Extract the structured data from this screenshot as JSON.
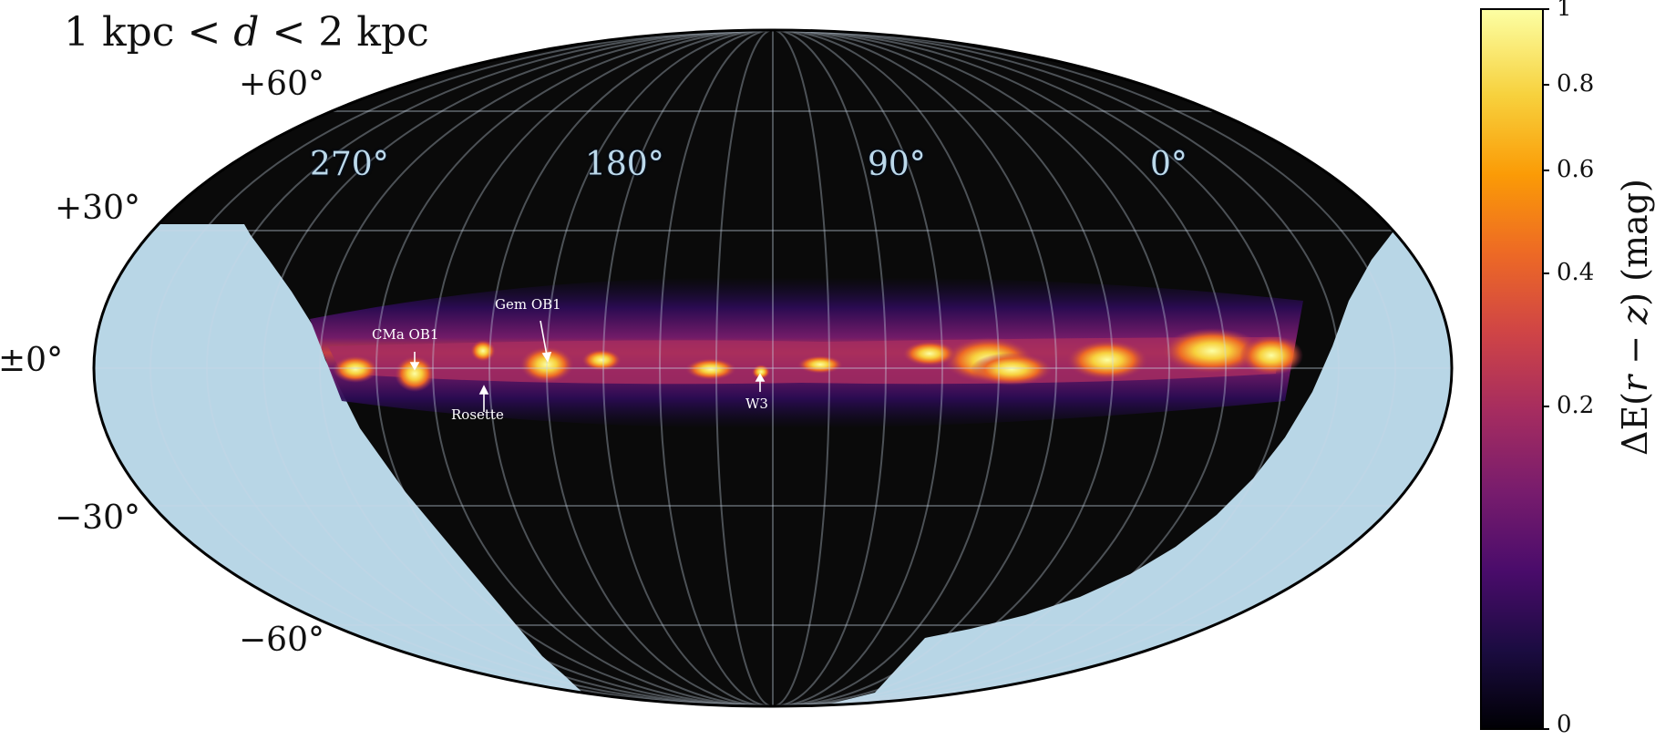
{
  "title": {
    "prefix": "1 kpc < ",
    "var": "d",
    "suffix": " < 2 kpc"
  },
  "latitude_labels": [
    "+60°",
    "+30°",
    "±0°",
    "−30°",
    "−60°"
  ],
  "longitude_labels": [
    "270°",
    "180°",
    "90°",
    "0°"
  ],
  "annotations": [
    "CMa OB1",
    "Gem OB1",
    "Rosette",
    "W3"
  ],
  "colorbar": {
    "label_prefix": "ΔE(",
    "label_var1": "r",
    "label_mid": " − ",
    "label_var2": "z",
    "label_suffix": ")  (mag)",
    "ticks": [
      "1",
      "0.8",
      "0.6",
      "0.4",
      "0.2",
      "0"
    ],
    "colors": [
      "#000004",
      "#1b0c41",
      "#4a0c6b",
      "#781c6d",
      "#a52c60",
      "#cf4446",
      "#ed6925",
      "#fb9b06",
      "#f7d13d",
      "#fcffa4"
    ]
  },
  "colors": {
    "no_data": "#b8d6e6",
    "map_background": "#0a0a0a"
  }
}
